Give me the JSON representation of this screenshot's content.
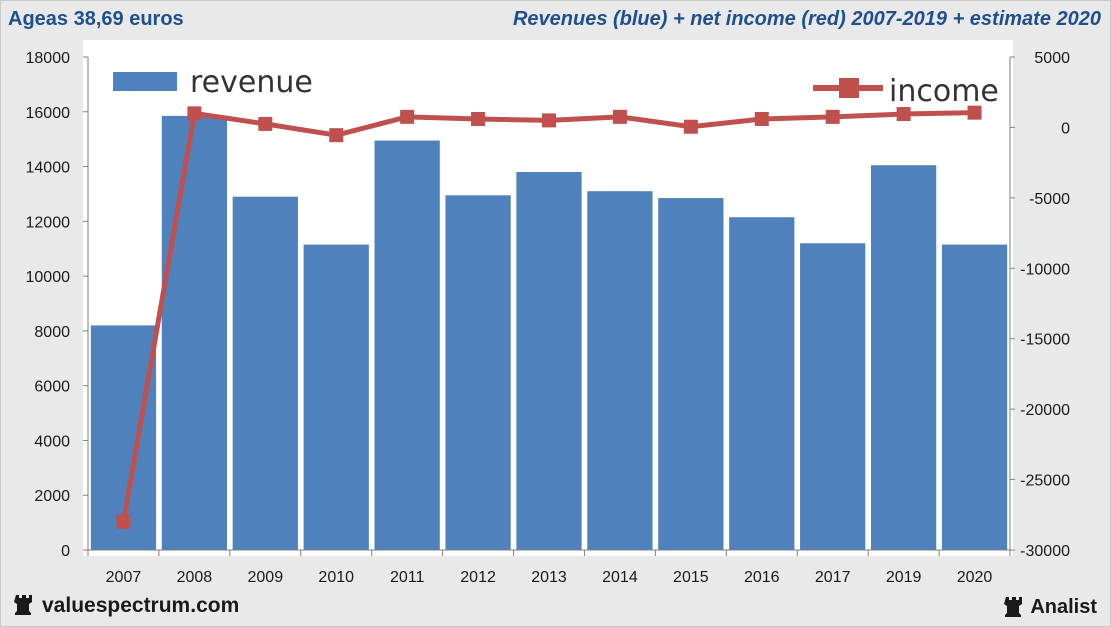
{
  "header": {
    "left_title": "Ageas 38,69 euros",
    "right_title": "Revenues (blue) + net income (red) 2007-2019 + estimate 2020"
  },
  "footer": {
    "left_brand": "valuespectrum.com",
    "right_brand": "Analist",
    "brand_icon": "chess-rook-icon"
  },
  "colors": {
    "revenue": "#4f81bd",
    "income": "#c0504d",
    "title": "#1f4f8c"
  },
  "chart_data": {
    "type": "bar",
    "categories": [
      "2007",
      "2008",
      "2009",
      "2010",
      "2011",
      "2012",
      "2013",
      "2014",
      "2015",
      "2016",
      "2017",
      "2019",
      "2020"
    ],
    "series": [
      {
        "name": "revenue",
        "type": "bar",
        "axis": "left",
        "values": [
          8200,
          15850,
          12900,
          11150,
          14950,
          12950,
          13800,
          13100,
          12850,
          12150,
          11200,
          14050,
          11150
        ]
      },
      {
        "name": "income",
        "type": "line",
        "axis": "right",
        "values": [
          -28000,
          1000,
          250,
          -550,
          750,
          600,
          500,
          750,
          50,
          600,
          750,
          950,
          1050
        ]
      }
    ],
    "y_left": {
      "min": 0,
      "max": 18000,
      "ticks": [
        0,
        2000,
        4000,
        6000,
        8000,
        10000,
        12000,
        14000,
        16000,
        18000
      ]
    },
    "y_right": {
      "min": -30000,
      "max": 5000,
      "ticks": [
        -30000,
        -25000,
        -20000,
        -15000,
        -10000,
        -5000,
        0,
        5000
      ]
    },
    "legend": {
      "revenue_label": "revenue",
      "income_label": "income",
      "placement": "top"
    },
    "grid": false
  }
}
